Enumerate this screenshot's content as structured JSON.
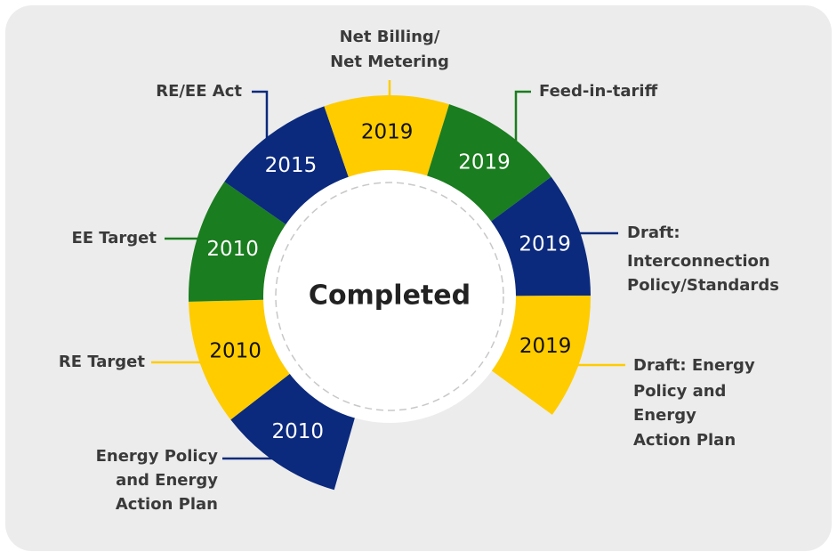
{
  "center": "Completed",
  "items": [
    {
      "year": "2010",
      "label": [
        "Energy Policy",
        "and Energy",
        "Action Plan"
      ],
      "color": "#0b2a7d"
    },
    {
      "year": "2010",
      "label": [
        "RE Target"
      ],
      "color": "#ffcc00"
    },
    {
      "year": "2010",
      "label": [
        "EE Target"
      ],
      "color": "#1a7d1f"
    },
    {
      "year": "2015",
      "label": [
        "RE/EE Act"
      ],
      "color": "#0b2a7d"
    },
    {
      "year": "2019",
      "label": [
        "Net Billing/",
        "Net Metering"
      ],
      "color": "#ffcc00"
    },
    {
      "year": "2019",
      "label": [
        "Feed-in-tariff"
      ],
      "color": "#1a7d1f"
    },
    {
      "year": "2019",
      "label": [
        "Draft:",
        "Interconnection",
        "Policy/Standards"
      ],
      "color": "#0b2a7d"
    },
    {
      "year": "2019",
      "label": [
        "Draft: Energy",
        "Policy and",
        "Energy",
        "Action Plan"
      ],
      "color": "#ffcc00"
    }
  ]
}
